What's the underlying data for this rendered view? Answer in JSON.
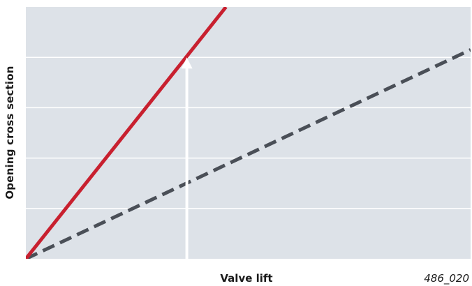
{
  "chart_data": {
    "type": "line",
    "xlabel": "Valve lift",
    "ylabel": "Opening cross section",
    "figure_id": "486_020",
    "grid": true,
    "xlim": [
      0,
      1
    ],
    "ylim": [
      0,
      1
    ],
    "yticks": [
      0,
      0.2,
      0.4,
      0.6,
      0.8,
      1.0
    ],
    "series": [
      {
        "style": "solid",
        "color": "#c8202f",
        "x": [
          0,
          0.45
        ],
        "y": [
          0,
          1.0
        ]
      },
      {
        "style": "dashed",
        "color": "#4a4f57",
        "x": [
          0,
          1.0
        ],
        "y": [
          0,
          0.83
        ]
      }
    ],
    "annotation": {
      "type": "arrow",
      "color": "#ffffff",
      "x": 0.362,
      "y_from": 0,
      "y_to": 0.8
    },
    "colors": {
      "plot_background": "#dde2e8",
      "gridline": "#ffffff"
    }
  }
}
